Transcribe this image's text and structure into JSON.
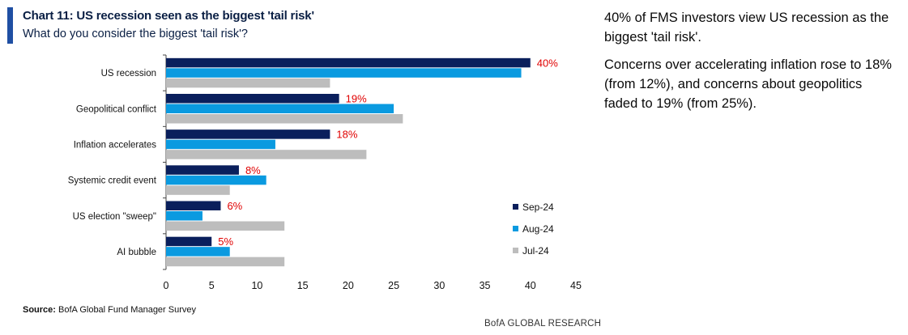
{
  "header": {
    "title": "Chart 11: US recession seen as the biggest 'tail risk'",
    "subtitle": "What do you consider the biggest 'tail risk'?"
  },
  "colors": {
    "accent": "#1f4fa3",
    "sep24": "#0a1f5c",
    "aug24": "#0a9ae0",
    "jul24": "#bdbdbd",
    "data_label": "#e00000"
  },
  "chart_data": {
    "type": "bar",
    "orientation": "horizontal",
    "categories": [
      "US recession",
      "Geopolitical conflict",
      "Inflation accelerates",
      "Systemic credit event",
      "US election \"sweep\"",
      "AI bubble"
    ],
    "series": [
      {
        "name": "Sep-24",
        "values": [
          40,
          19,
          18,
          8,
          6,
          5
        ]
      },
      {
        "name": "Aug-24",
        "values": [
          39,
          25,
          12,
          11,
          4,
          7
        ]
      },
      {
        "name": "Jul-24",
        "values": [
          18,
          26,
          22,
          7,
          13,
          13
        ]
      }
    ],
    "data_labels": [
      "40%",
      "19%",
      "18%",
      "8%",
      "6%",
      "5%"
    ],
    "xlim": [
      0,
      45
    ],
    "xticks": [
      "0",
      "5",
      "10",
      "15",
      "20",
      "25",
      "30",
      "35",
      "40",
      "45"
    ],
    "grid": false,
    "legend_position": "right"
  },
  "footer": {
    "source_label": "Source:",
    "source_text": " BofA Global Fund Manager Survey",
    "brand": "BofA GLOBAL RESEARCH"
  },
  "commentary": {
    "p1": "40% of FMS investors view US recession as the biggest 'tail risk'.",
    "p2": "Concerns over accelerating inflation rose to 18% (from 12%), and concerns about geopolitics faded to 19% (from 25%)."
  }
}
